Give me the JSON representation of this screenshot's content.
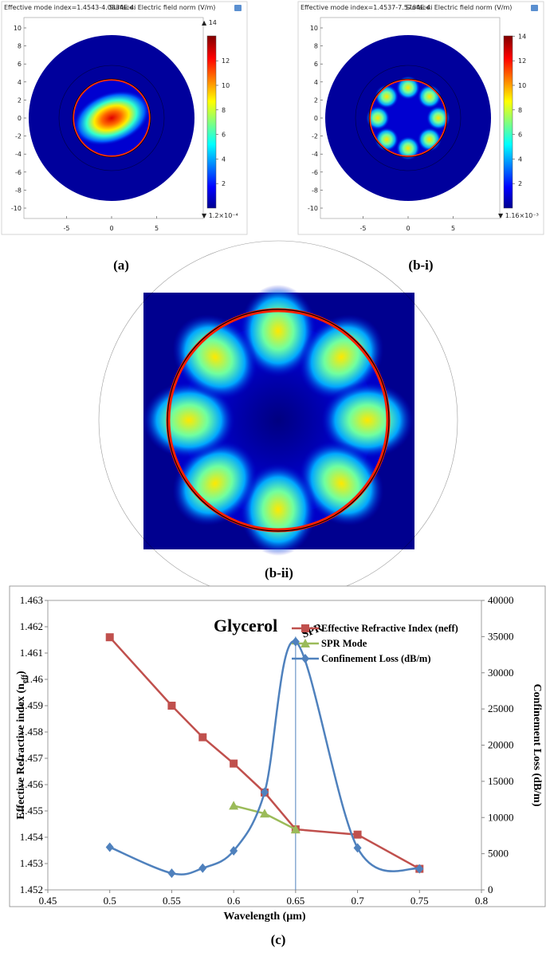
{
  "panels": [
    {
      "title_left": "Effective mode index=1.4543-4.0834E-4i",
      "title_right": "Surface: Electric field norm (V/m)",
      "yticks": [
        10,
        8,
        6,
        4,
        2,
        0,
        -2,
        -4,
        -6,
        -8,
        -10
      ],
      "xticks": [
        -5,
        0,
        5
      ],
      "colorbar_ticks": [
        12,
        10,
        8,
        6,
        4,
        2
      ],
      "colorbar_max": "▲ 14",
      "colorbar_min": "▼ 1.2×10⁻⁴",
      "caption": "(a)"
    },
    {
      "title_left": "Effective mode index=1.4537-7.5764E-4i",
      "title_right": "Surface: Electric field norm (V/m)",
      "yticks": [
        10,
        8,
        6,
        4,
        2,
        0,
        -2,
        -4,
        -6,
        -8,
        -10
      ],
      "xticks": [
        -5,
        0,
        5
      ],
      "colorbar_ticks": [
        14,
        12,
        10,
        8,
        6,
        4,
        2
      ],
      "colorbar_max": "",
      "colorbar_min": "▼ 1.16×10⁻³",
      "caption": "(b-i)"
    }
  ],
  "zoom_caption": "(b-ii)",
  "chart_data": {
    "type": "line",
    "title": "Glycerol",
    "annotation": "SPR",
    "spr_line_x": 0.65,
    "xlabel": "Wavelength (μm)",
    "ylabel": "Effective Refractive index (n",
    "ylabel_sub": "eff",
    "ylabel_end": ")",
    "y2label": "Confinement Loss (dB/m)",
    "x": [
      0.5,
      0.55,
      0.575,
      0.6,
      0.625,
      0.65,
      0.7,
      0.75
    ],
    "series": [
      {
        "name": "Effective Refractive Index (neff)",
        "color": "#c0504d",
        "marker": "square",
        "values": [
          1.4616,
          1.459,
          1.4578,
          1.4568,
          1.4557,
          1.4543,
          1.4541,
          1.4528
        ]
      },
      {
        "name": "SPR Mode",
        "color": "#9bbb59",
        "marker": "triangle",
        "values": [
          null,
          null,
          null,
          1.4552,
          1.4549,
          1.4543,
          null,
          null
        ]
      },
      {
        "name": "Confinement Loss (dB/m)",
        "color": "#4f81bd",
        "marker": "diamond",
        "axis": "y2",
        "values": [
          5900,
          2300,
          3000,
          5400,
          13500,
          34300,
          5800,
          2900
        ]
      }
    ],
    "xlim": [
      0.45,
      0.8
    ],
    "xticks": [
      0.45,
      0.5,
      0.55,
      0.6,
      0.65,
      0.7,
      0.75,
      0.8
    ],
    "ylim": [
      1.452,
      1.463
    ],
    "yticks": [
      1.452,
      1.453,
      1.454,
      1.455,
      1.456,
      1.457,
      1.458,
      1.459,
      1.46,
      1.461,
      1.462,
      1.463
    ],
    "y2lim": [
      0,
      40000
    ],
    "y2ticks": [
      0,
      5000,
      10000,
      15000,
      20000,
      25000,
      30000,
      35000,
      40000
    ]
  },
  "chart_caption": "(c)"
}
